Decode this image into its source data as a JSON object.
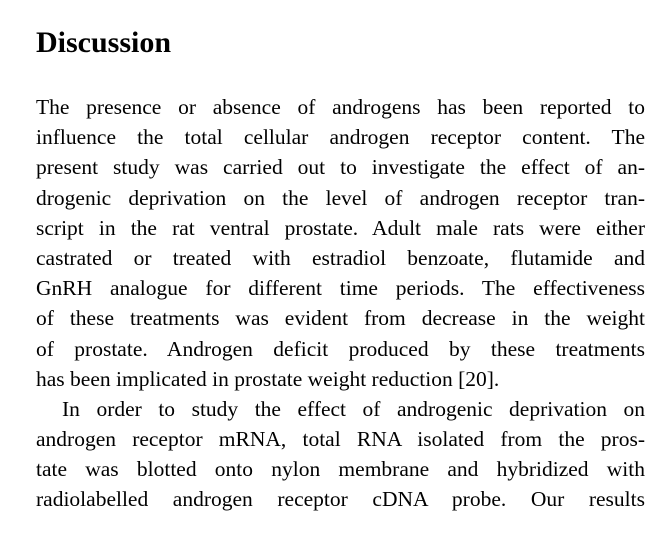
{
  "heading": "Discussion",
  "paragraphs": [
    {
      "lines": [
        "The presence or absence of androgens has been reported to",
        "influence the total cellular androgen receptor content. The",
        "present study was carried out to investigate the effect of an-",
        "drogenic deprivation on the level of androgen receptor tran-",
        "script in the rat ventral prostate. Adult male rats were either",
        "castrated or treated with estradiol benzoate, flutamide and",
        "GnRH analogue for different time periods. The effectiveness",
        "of these treatments was evident from decrease in the weight",
        "of prostate. Androgen deficit produced by these treatments",
        "has been implicated in prostate weight reduction [20]."
      ]
    },
    {
      "lines": [
        "In order to study the effect of androgenic deprivation on",
        "androgen receptor mRNA, total RNA isolated from the pros-",
        "tate was blotted onto nylon membrane and hybridized with",
        "radiolabelled androgen receptor cDNA probe. Our results"
      ]
    }
  ]
}
